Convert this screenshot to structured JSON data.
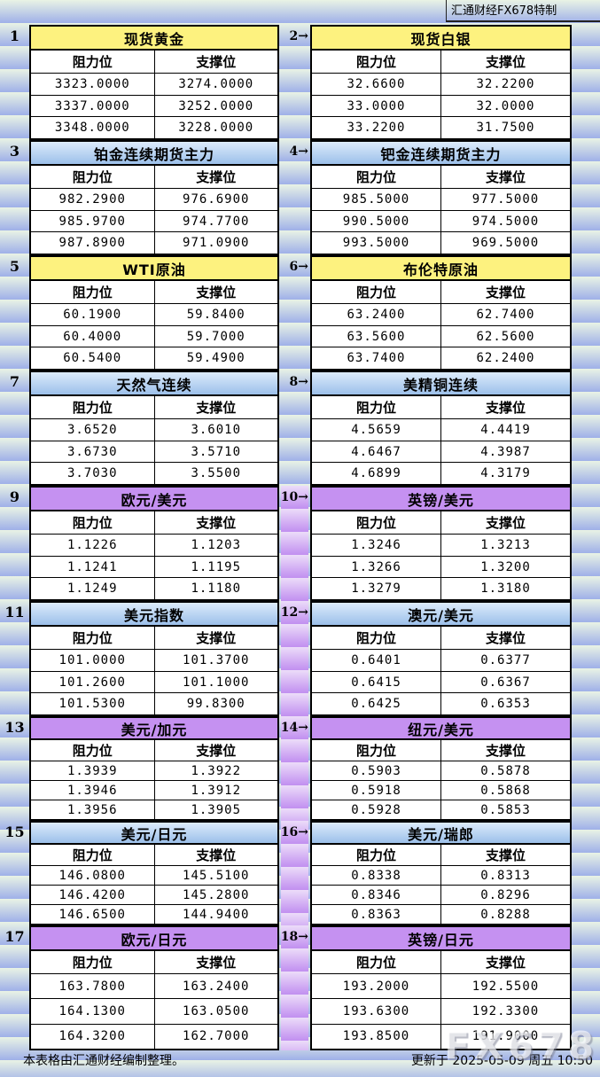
{
  "brand": "汇通财经FX678特制",
  "watermark": "FX678",
  "arrow": "→",
  "columns": {
    "resistance": "阻力位",
    "support": "支撑位"
  },
  "footer": {
    "source_note": "本表格由汇通财经编制整理。",
    "updated": "更新于 2025-05-09 周五 10:50"
  },
  "pairs": [
    {
      "height": "h130",
      "gutter": "blue",
      "left": {
        "index": "1",
        "title": "现货黄金",
        "theme": "yellow",
        "rows": [
          [
            "3323.0000",
            "3274.0000"
          ],
          [
            "3337.0000",
            "3252.0000"
          ],
          [
            "3348.0000",
            "3228.0000"
          ]
        ]
      },
      "right": {
        "index": "2",
        "title": "现货白银",
        "theme": "yellow",
        "rows": [
          [
            "32.6600",
            "32.2200"
          ],
          [
            "33.0000",
            "32.0000"
          ],
          [
            "33.2200",
            "31.7500"
          ]
        ]
      }
    },
    {
      "height": "h130",
      "gutter": "blue",
      "left": {
        "index": "3",
        "title": "铂金连续期货主力",
        "theme": "blue",
        "rows": [
          [
            "982.2900",
            "976.6900"
          ],
          [
            "985.9700",
            "974.7700"
          ],
          [
            "987.8900",
            "971.0900"
          ]
        ]
      },
      "right": {
        "index": "4",
        "title": "钯金连续期货主力",
        "theme": "blue",
        "rows": [
          [
            "985.5000",
            "977.5000"
          ],
          [
            "990.5000",
            "974.5000"
          ],
          [
            "993.5000",
            "969.5000"
          ]
        ]
      }
    },
    {
      "height": "h130",
      "gutter": "blue",
      "left": {
        "index": "5",
        "title": "WTI原油",
        "theme": "yellow",
        "rows": [
          [
            "60.1900",
            "59.8400"
          ],
          [
            "60.4000",
            "59.7000"
          ],
          [
            "60.5400",
            "59.4900"
          ]
        ]
      },
      "right": {
        "index": "6",
        "title": "布伦特原油",
        "theme": "yellow",
        "rows": [
          [
            "63.2400",
            "62.7400"
          ],
          [
            "63.5600",
            "62.5600"
          ],
          [
            "63.7400",
            "62.2400"
          ]
        ]
      }
    },
    {
      "height": "h130",
      "gutter": "blue",
      "left": {
        "index": "7",
        "title": "天然气连续",
        "theme": "blue",
        "rows": [
          [
            "3.6520",
            "3.6010"
          ],
          [
            "3.6730",
            "3.5710"
          ],
          [
            "3.7030",
            "3.5500"
          ]
        ]
      },
      "right": {
        "index": "8",
        "title": "美精铜连续",
        "theme": "blue",
        "rows": [
          [
            "4.5659",
            "4.4419"
          ],
          [
            "4.6467",
            "4.3987"
          ],
          [
            "4.6899",
            "4.3179"
          ]
        ]
      }
    },
    {
      "height": "h130",
      "gutter": "purple",
      "left": {
        "index": "9",
        "title": "欧元/美元",
        "theme": "purple",
        "rows": [
          [
            "1.1226",
            "1.1203"
          ],
          [
            "1.1241",
            "1.1195"
          ],
          [
            "1.1249",
            "1.1180"
          ]
        ]
      },
      "right": {
        "index": "10",
        "title": "英镑/美元",
        "theme": "purple",
        "rows": [
          [
            "1.3246",
            "1.3213"
          ],
          [
            "1.3266",
            "1.3200"
          ],
          [
            "1.3279",
            "1.3180"
          ]
        ]
      }
    },
    {
      "height": "h130",
      "gutter": "purple",
      "left": {
        "index": "11",
        "title": "美元指数",
        "theme": "blue",
        "rows": [
          [
            "101.0000",
            "101.3700"
          ],
          [
            "101.2600",
            "101.1000"
          ],
          [
            "101.5300",
            "99.8300"
          ]
        ]
      },
      "right": {
        "index": "12",
        "title": "澳元/美元",
        "theme": "blue",
        "rows": [
          [
            "0.6401",
            "0.6377"
          ],
          [
            "0.6415",
            "0.6367"
          ],
          [
            "0.6425",
            "0.6353"
          ]
        ]
      }
    },
    {
      "height": "h118",
      "gutter": "purple",
      "left": {
        "index": "13",
        "title": "美元/加元",
        "theme": "purple",
        "rows": [
          [
            "1.3939",
            "1.3922"
          ],
          [
            "1.3946",
            "1.3912"
          ],
          [
            "1.3956",
            "1.3905"
          ]
        ]
      },
      "right": {
        "index": "14",
        "title": "纽元/美元",
        "theme": "purple",
        "rows": [
          [
            "0.5903",
            "0.5878"
          ],
          [
            "0.5918",
            "0.5868"
          ],
          [
            "0.5928",
            "0.5853"
          ]
        ]
      }
    },
    {
      "height": "h118",
      "gutter": "purple",
      "left": {
        "index": "15",
        "title": "美元/日元",
        "theme": "blue",
        "rows": [
          [
            "146.0800",
            "145.5100"
          ],
          [
            "146.4200",
            "145.2800"
          ],
          [
            "146.6500",
            "144.9400"
          ]
        ]
      },
      "right": {
        "index": "16",
        "title": "美元/瑞郎",
        "theme": "blue",
        "rows": [
          [
            "0.8338",
            "0.8313"
          ],
          [
            "0.8346",
            "0.8296"
          ],
          [
            "0.8363",
            "0.8288"
          ]
        ]
      }
    },
    {
      "height": "h141",
      "gutter": "purple",
      "left": {
        "index": "17",
        "title": "欧元/日元",
        "theme": "purple",
        "rows": [
          [
            "163.7800",
            "163.2400"
          ],
          [
            "164.1300",
            "163.0500"
          ],
          [
            "164.3200",
            "162.7000"
          ]
        ]
      },
      "right": {
        "index": "18",
        "title": "英镑/日元",
        "theme": "purple",
        "rows": [
          [
            "193.2000",
            "192.5500"
          ],
          [
            "193.6300",
            "192.3300"
          ],
          [
            "193.8500",
            "191.9000"
          ]
        ]
      }
    }
  ]
}
